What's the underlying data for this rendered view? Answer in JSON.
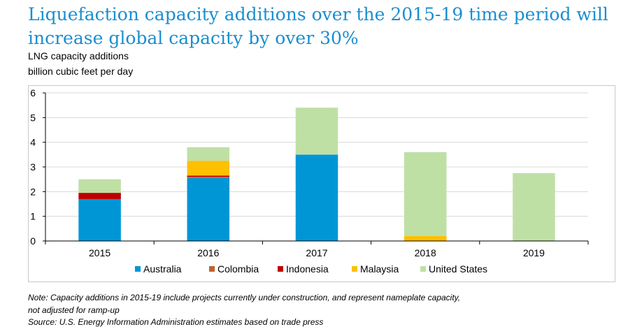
{
  "header": {
    "title_line1": "Liquefaction capacity additions over the 2015-19 time period will",
    "title_line2": "increase global capacity by over 30%",
    "subtitle_line1": "LNG capacity additions",
    "subtitle_line2": "billion cubic feet per day"
  },
  "footer": {
    "note_line1": "Note: Capacity additions in 2015-19 include projects currently under construction, and represent nameplate capacity,",
    "note_line2": "not adjusted for ramp-up",
    "source": "Source: U.S. Energy Information Administration estimates based on trade press"
  },
  "chart_data": {
    "type": "bar",
    "stacked": true,
    "title": "Liquefaction capacity additions over the 2015-19 time period will increase global capacity by over 30%",
    "ylabel": "",
    "xlabel": "",
    "categories": [
      "2015",
      "2016",
      "2017",
      "2018",
      "2019"
    ],
    "ylim": [
      0,
      6
    ],
    "yticks": [
      0,
      1,
      2,
      3,
      4,
      5,
      6
    ],
    "grid": true,
    "legend_position": "bottom",
    "series": [
      {
        "name": "Australia",
        "color": "#0096d6",
        "values": [
          1.7,
          2.55,
          3.5,
          0,
          0
        ]
      },
      {
        "name": "Colombia",
        "color": "#c0632a",
        "values": [
          0,
          0.05,
          0,
          0,
          0
        ]
      },
      {
        "name": "Indonesia",
        "color": "#c00000",
        "values": [
          0.25,
          0.05,
          0,
          0,
          0
        ]
      },
      {
        "name": "Malaysia",
        "color": "#ffc000",
        "values": [
          0,
          0.6,
          0,
          0.2,
          0
        ]
      },
      {
        "name": "United States",
        "color": "#bfe0a5",
        "values": [
          0.55,
          0.55,
          1.9,
          3.4,
          2.75
        ]
      }
    ]
  }
}
